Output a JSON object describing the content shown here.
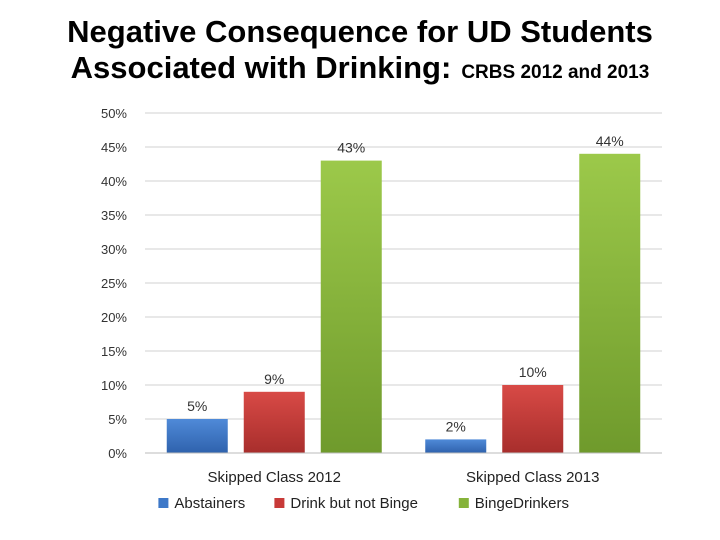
{
  "title": {
    "line1": "Negative Consequence for UD Students",
    "line2": "Associated with Drinking:",
    "subtitle": "CRBS 2012 and 2013"
  },
  "chart_data": {
    "type": "bar",
    "categories": [
      "Skipped Class 2012",
      "Skipped Class 2013"
    ],
    "series": [
      {
        "name": "Abstainers",
        "values": [
          5,
          2
        ],
        "labels": [
          "5%",
          "2%"
        ],
        "color": "#3d78c8"
      },
      {
        "name": "Drink but not Binge",
        "values": [
          9,
          10
        ],
        "labels": [
          "9%",
          "10%"
        ],
        "color": "#c83a38"
      },
      {
        "name": "BingeDrinkers",
        "values": [
          43,
          44
        ],
        "labels": [
          "43%",
          "44%"
        ],
        "color": "#86b33a"
      }
    ],
    "y_ticks": [
      "0%",
      "5%",
      "10%",
      "15%",
      "20%",
      "25%",
      "30%",
      "35%",
      "40%",
      "45%",
      "50%"
    ],
    "ylim": [
      0,
      50
    ],
    "grid": true,
    "legend_position": "bottom"
  }
}
